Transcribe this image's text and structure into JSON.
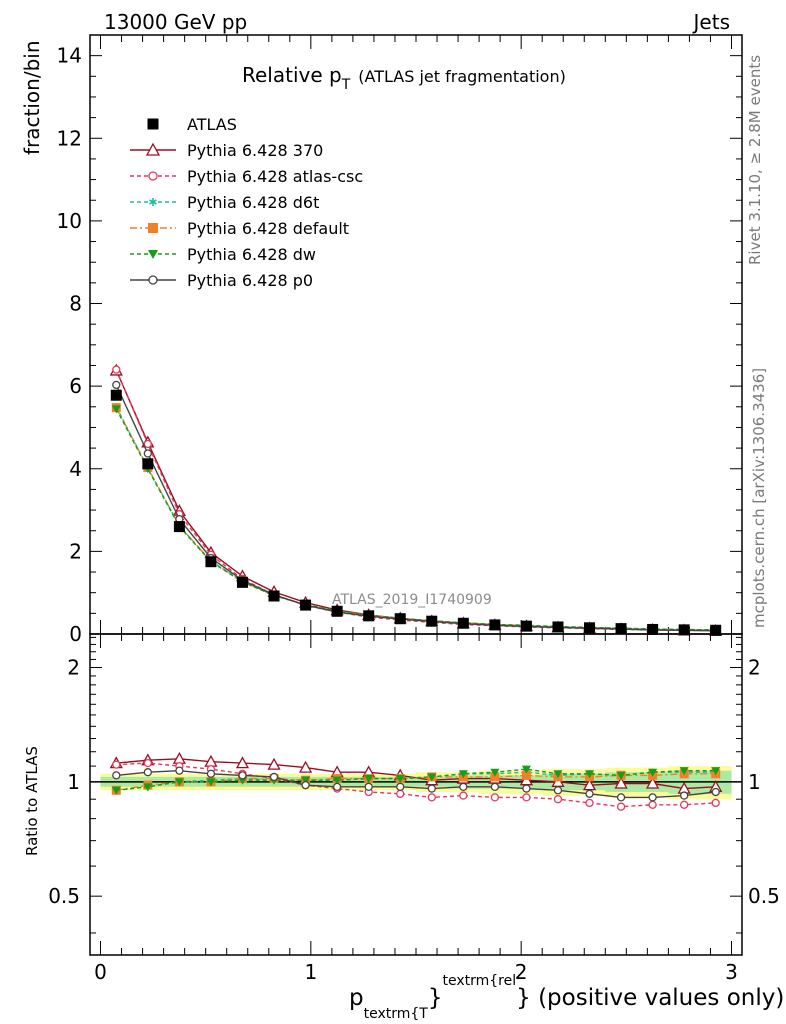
{
  "header": {
    "left": "13000 GeV pp",
    "right": "Jets"
  },
  "side_labels": {
    "rivet": "Rivet 3.1.10, ≥ 2.8M events",
    "mcplots": "mcplots.cern.ch [arXiv:1306.3436]"
  },
  "chart_data": [
    {
      "type": "line",
      "panel": "main",
      "title_main": "Relative p",
      "title_sub": "T",
      "title_rest": "(ATLAS jet fragmentation)",
      "ylabel": "fraction/bin",
      "watermark": "ATLAS_2019_I1740909",
      "xlim": [
        -0.05,
        3.05
      ],
      "ylim": [
        0,
        14.5
      ],
      "yticks": [
        0,
        2,
        4,
        6,
        8,
        10,
        12,
        14
      ],
      "ytick_labels": [
        "0",
        "2",
        "4",
        "6",
        "8",
        "10",
        "12",
        "14"
      ],
      "legend_position": "top-left",
      "x": [
        0.075,
        0.225,
        0.375,
        0.525,
        0.675,
        0.825,
        0.975,
        1.125,
        1.275,
        1.425,
        1.575,
        1.725,
        1.875,
        2.025,
        2.175,
        2.325,
        2.475,
        2.625,
        2.775,
        2.925
      ],
      "series": [
        {
          "name": "ATLAS",
          "color": "#000000",
          "marker": "square-filled",
          "dash": "none",
          "values": [
            5.78,
            4.12,
            2.6,
            1.75,
            1.25,
            0.92,
            0.7,
            0.55,
            0.44,
            0.37,
            0.31,
            0.26,
            0.22,
            0.19,
            0.17,
            0.15,
            0.13,
            0.11,
            0.1,
            0.09
          ]
        },
        {
          "name": "Pythia 6.428 370",
          "color": "#9a0e24",
          "marker": "triangle-open",
          "dash": "none",
          "values": [
            6.38,
            4.64,
            2.98,
            1.97,
            1.4,
            1.02,
            0.76,
            0.58,
            0.46,
            0.38,
            0.31,
            0.26,
            0.22,
            0.19,
            0.16,
            0.14,
            0.12,
            0.1,
            0.09,
            0.08
          ]
        },
        {
          "name": "Pythia 6.428 atlas-csc",
          "color": "#e8375a",
          "marker": "circle-open",
          "dash": "4,3",
          "values": [
            6.4,
            4.6,
            2.9,
            1.92,
            1.33,
            0.95,
            0.69,
            0.53,
            0.41,
            0.34,
            0.28,
            0.23,
            0.2,
            0.17,
            0.15,
            0.13,
            0.11,
            0.1,
            0.09,
            0.08
          ]
        },
        {
          "name": "Pythia 6.428 d6t",
          "color": "#1bbf9a",
          "marker": "star",
          "dash": "4,3",
          "values": [
            5.5,
            4.02,
            2.62,
            1.77,
            1.27,
            0.93,
            0.71,
            0.56,
            0.45,
            0.38,
            0.32,
            0.27,
            0.23,
            0.21,
            0.18,
            0.16,
            0.14,
            0.12,
            0.11,
            0.1
          ]
        },
        {
          "name": "Pythia 6.428 default",
          "color": "#f47f29",
          "marker": "square-filled",
          "dash": "7,3,2,3",
          "values": [
            5.48,
            4.03,
            2.62,
            1.76,
            1.27,
            0.94,
            0.71,
            0.56,
            0.45,
            0.38,
            0.32,
            0.27,
            0.23,
            0.2,
            0.17,
            0.15,
            0.13,
            0.11,
            0.1,
            0.09
          ]
        },
        {
          "name": "Pythia 6.428 dw",
          "color": "#159e16",
          "marker": "triangle-down-filled",
          "dash": "4,3",
          "values": [
            5.45,
            4.0,
            2.6,
            1.75,
            1.26,
            0.93,
            0.71,
            0.56,
            0.45,
            0.38,
            0.32,
            0.27,
            0.23,
            0.21,
            0.18,
            0.16,
            0.14,
            0.12,
            0.11,
            0.1
          ]
        },
        {
          "name": "Pythia 6.428 p0",
          "color": "#444444",
          "marker": "circle-open",
          "dash": "none",
          "values": [
            6.03,
            4.37,
            2.78,
            1.84,
            1.3,
            0.95,
            0.7,
            0.53,
            0.43,
            0.36,
            0.3,
            0.25,
            0.21,
            0.18,
            0.16,
            0.14,
            0.12,
            0.1,
            0.09,
            0.08
          ]
        }
      ]
    },
    {
      "type": "line",
      "panel": "ratio",
      "ylabel": "Ratio to ATLAS",
      "xlabel_main": "p",
      "xlabel_sub": "textrm{T",
      "xlabel_mid": "}",
      "xlabel_sup": "textrm{rel",
      "xlabel_rest": "} (positive values only)",
      "xlim": [
        -0.05,
        3.05
      ],
      "ylim": [
        0.35,
        2.45
      ],
      "xticks": [
        0,
        1,
        2,
        3
      ],
      "xtick_labels": [
        "0",
        "1",
        "2",
        "3"
      ],
      "yticks": [
        0.5,
        1,
        2
      ],
      "ytick_labels": [
        "0.5",
        "1",
        "2"
      ],
      "band_inner": [
        0.03,
        0.03,
        0.03,
        0.03,
        0.03,
        0.03,
        0.03,
        0.03,
        0.03,
        0.03,
        0.03,
        0.04,
        0.04,
        0.04,
        0.05,
        0.05,
        0.06,
        0.06,
        0.07,
        0.07
      ],
      "band_outer": [
        0.05,
        0.05,
        0.05,
        0.05,
        0.05,
        0.05,
        0.05,
        0.05,
        0.05,
        0.05,
        0.06,
        0.06,
        0.07,
        0.07,
        0.08,
        0.08,
        0.09,
        0.09,
        0.1,
        0.1
      ],
      "band_inner_color": "#aee9a4",
      "band_outer_color": "#fbfb9a",
      "series": [
        {
          "name": "Pythia 6.428 370",
          "values": [
            1.12,
            1.14,
            1.15,
            1.13,
            1.12,
            1.11,
            1.09,
            1.06,
            1.06,
            1.04,
            1.01,
            1.02,
            1.02,
            1.01,
            1.0,
            0.98,
            0.99,
            0.99,
            0.96,
            0.97
          ]
        },
        {
          "name": "Pythia 6.428 atlas-csc",
          "values": [
            1.11,
            1.12,
            1.1,
            1.08,
            1.05,
            1.02,
            0.98,
            0.96,
            0.94,
            0.93,
            0.91,
            0.92,
            0.91,
            0.91,
            0.9,
            0.88,
            0.86,
            0.87,
            0.87,
            0.88
          ]
        },
        {
          "name": "Pythia 6.428 d6t",
          "values": [
            0.95,
            0.97,
            1.0,
            1.01,
            1.02,
            1.01,
            1.01,
            1.01,
            1.02,
            1.02,
            1.03,
            1.05,
            1.05,
            1.06,
            1.04,
            1.05,
            1.04,
            1.06,
            1.06,
            1.06
          ]
        },
        {
          "name": "Pythia 6.428 default",
          "values": [
            0.95,
            0.98,
            1.0,
            1.0,
            1.02,
            1.02,
            1.01,
            1.02,
            1.02,
            1.02,
            1.03,
            1.03,
            1.03,
            1.04,
            1.03,
            1.03,
            1.04,
            1.04,
            1.05,
            1.05
          ]
        },
        {
          "name": "Pythia 6.428 dw",
          "values": [
            0.95,
            0.97,
            1.0,
            1.0,
            1.01,
            1.01,
            1.01,
            1.01,
            1.02,
            1.02,
            1.03,
            1.05,
            1.06,
            1.08,
            1.05,
            1.05,
            1.04,
            1.06,
            1.07,
            1.07
          ]
        },
        {
          "name": "Pythia 6.428 p0",
          "values": [
            1.04,
            1.06,
            1.07,
            1.05,
            1.04,
            1.03,
            0.98,
            0.97,
            0.97,
            0.97,
            0.96,
            0.97,
            0.97,
            0.96,
            0.95,
            0.93,
            0.91,
            0.91,
            0.92,
            0.94
          ]
        }
      ]
    }
  ]
}
